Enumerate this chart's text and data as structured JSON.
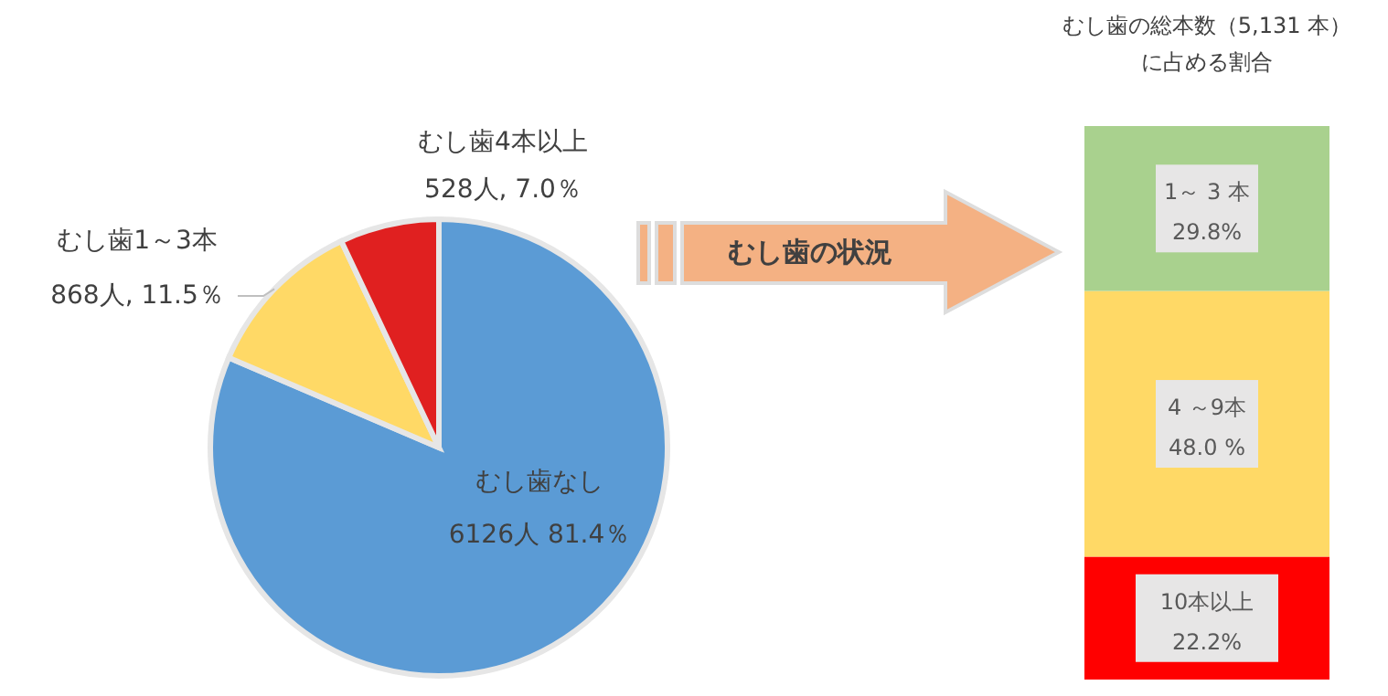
{
  "chart_data": [
    {
      "type": "pie",
      "categories": [
        "むし歯なし",
        "むし歯1～3本",
        "むし歯4本以上"
      ],
      "values": [
        6126,
        868,
        528
      ],
      "colors": [
        "#5b9bd5",
        "#ffd966",
        "#e02020"
      ],
      "value_labels": [
        "6126人 81.4％",
        "868人, 11.5％",
        "528人, 7.0％"
      ],
      "annotations": [
        "むし歯の状況"
      ]
    },
    {
      "type": "bar",
      "title": "むし歯の総本数（5,131 本）に占める割合",
      "stacked": true,
      "categories": [
        null
      ],
      "series": [
        {
          "name": "10本以上",
          "color": "#ff0000",
          "values": [
            22.2
          ],
          "value_labels": [
            "22.2%"
          ]
        },
        {
          "name": "4 ～9本",
          "color": "#ffd966",
          "values": [
            48.0
          ],
          "value_labels": [
            "48.0 %"
          ]
        },
        {
          "name": "1～ 3 本",
          "color": "#a9d18e",
          "values": [
            29.8
          ],
          "value_labels": [
            "29.8%"
          ]
        }
      ]
    }
  ]
}
